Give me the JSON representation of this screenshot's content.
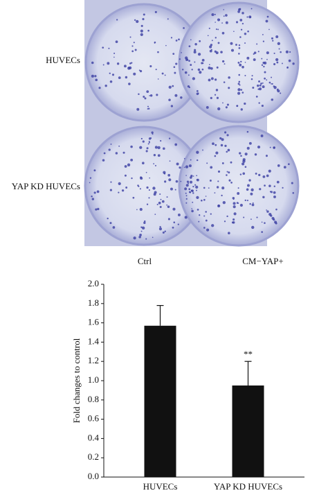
{
  "image_labels": {
    "rows": [
      "HUVECs",
      "YAP KD HUVECs"
    ],
    "columns": [
      "Ctrl",
      "CM−YAP+"
    ]
  },
  "chart_data": {
    "type": "bar",
    "y_label": "Fold changes to control",
    "categories": [
      "HUVECs",
      "YAP KD HUVECs"
    ],
    "values": [
      1.57,
      0.95
    ],
    "errors": [
      0.21,
      0.25
    ],
    "significance": [
      null,
      "**"
    ],
    "color": "#111111",
    "ylim": [
      0,
      2.0
    ],
    "yticks": [
      {
        "value": 0,
        "label": "0.0"
      },
      {
        "value": 0.2,
        "label": "0.2"
      },
      {
        "value": 0.4,
        "label": "0.4"
      },
      {
        "value": 0.6,
        "label": "0.6"
      },
      {
        "value": 0.8,
        "label": "0.8"
      },
      {
        "value": 1.0,
        "label": "1.0"
      },
      {
        "value": 1.2,
        "label": "1.2"
      },
      {
        "value": 1.4,
        "label": "1.4"
      },
      {
        "value": 1.6,
        "label": "1.6"
      },
      {
        "value": 1.8,
        "label": "1.8"
      },
      {
        "value": 2.0,
        "label": "2.0"
      }
    ]
  }
}
